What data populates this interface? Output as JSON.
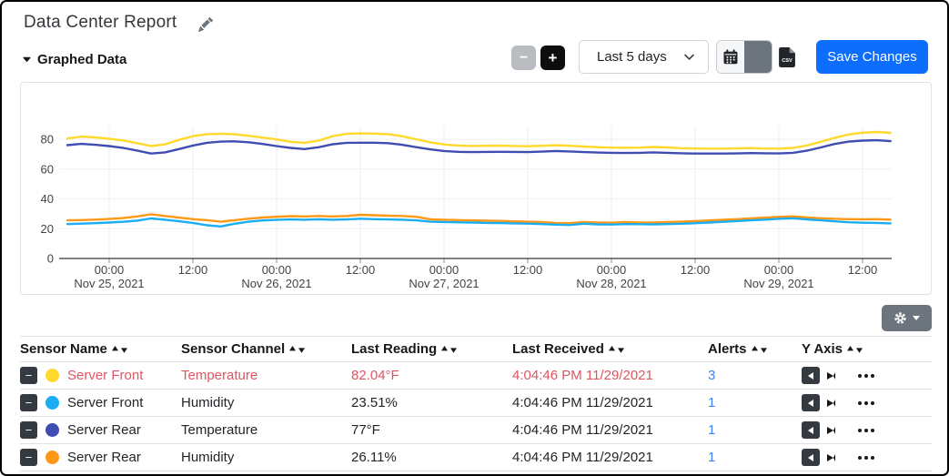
{
  "header": {
    "title": "Data Center Report"
  },
  "section": {
    "label": "Graphed Data"
  },
  "toolbar": {
    "zoom_out_label": "−",
    "zoom_in_label": "+",
    "range_value": "Last 5 days",
    "save_label": "Save Changes"
  },
  "icons": {
    "edit": "pencil-icon",
    "collapse": "caret-down-icon",
    "zoom_out": "minus-icon",
    "zoom_in": "plus-icon",
    "range": "chevron-down-icon",
    "calendar": "calendar-icon",
    "export": "csv-file-icon",
    "settings": "gear-icon",
    "sort": "sort-arrows-icon",
    "remove_row": "minus-square-icon",
    "axis_left": "left-arrow-icon",
    "axis_right": "right-arrow-icon",
    "row_menu": "ellipsis-icon"
  },
  "colors": {
    "accent": "#0d6efd",
    "danger_text": "#e0535f",
    "link": "#3c82f5",
    "front_temperature": "#ffd92b",
    "front_humidity": "#1badf2",
    "rear_temperature": "#3f4db3",
    "rear_humidity": "#fe9816"
  },
  "chart_data": {
    "type": "line",
    "title": "",
    "xlabel": "",
    "ylabel": "",
    "grid": true,
    "legend_position": "none",
    "ylim": [
      0,
      88
    ],
    "y_ticks": [
      0,
      20,
      40,
      60,
      80
    ],
    "x_unit": "hours from Nov 25, 2021 00:00",
    "x_start_hours": -6,
    "x_step_hours": 2,
    "x_ticks": [
      {
        "h": 0,
        "label": "00:00",
        "date": "Nov 25, 2021"
      },
      {
        "h": 12,
        "label": "12:00"
      },
      {
        "h": 24,
        "label": "00:00",
        "date": "Nov 26, 2021"
      },
      {
        "h": 36,
        "label": "12:00"
      },
      {
        "h": 48,
        "label": "00:00",
        "date": "Nov 27, 2021"
      },
      {
        "h": 60,
        "label": "12:00"
      },
      {
        "h": 72,
        "label": "00:00",
        "date": "Nov 28, 2021"
      },
      {
        "h": 84,
        "label": "12:00"
      },
      {
        "h": 96,
        "label": "00:00",
        "date": "Nov 29, 2021"
      },
      {
        "h": 108,
        "label": "12:00"
      }
    ],
    "series": [
      {
        "name": "Server Front Temperature",
        "color": "#ffd92b",
        "values": [
          80.5,
          81.8,
          81.2,
          80.3,
          79.2,
          77.4,
          75.4,
          76.6,
          79.6,
          82.1,
          83.4,
          83.7,
          83.3,
          82.3,
          81.1,
          79.9,
          78.3,
          77.6,
          79.0,
          82.0,
          83.6,
          83.9,
          83.8,
          83.4,
          82.0,
          80.0,
          78.0,
          76.5,
          75.8,
          75.5,
          75.6,
          75.7,
          75.5,
          75.3,
          75.6,
          76.0,
          75.6,
          75.1,
          74.7,
          74.4,
          74.3,
          74.4,
          74.8,
          74.5,
          74.0,
          73.8,
          73.7,
          73.7,
          73.9,
          74.1,
          73.8,
          73.7,
          74.2,
          75.8,
          78.3,
          81.0,
          83.2,
          84.4,
          84.9,
          84.3
        ]
      },
      {
        "name": "Server Rear Temperature",
        "color": "#3f4db3",
        "values": [
          76.0,
          76.9,
          76.3,
          75.4,
          74.2,
          72.4,
          70.4,
          71.2,
          73.4,
          75.8,
          77.6,
          78.4,
          78.6,
          78.0,
          76.8,
          75.4,
          74.2,
          73.4,
          74.6,
          76.6,
          77.6,
          77.7,
          77.7,
          77.4,
          76.3,
          74.7,
          73.2,
          72.1,
          71.6,
          71.4,
          71.5,
          71.6,
          71.5,
          71.4,
          71.7,
          72.1,
          71.8,
          71.4,
          71.1,
          70.9,
          70.8,
          70.9,
          71.2,
          70.9,
          70.6,
          70.4,
          70.4,
          70.4,
          70.5,
          70.7,
          70.6,
          70.5,
          70.9,
          72.3,
          74.5,
          76.8,
          78.4,
          79.1,
          79.3,
          78.7
        ]
      },
      {
        "name": "Server Rear Humidity",
        "color": "#fe9816",
        "values": [
          25.6,
          25.8,
          26.1,
          26.5,
          27.1,
          28.2,
          29.7,
          28.5,
          27.4,
          26.4,
          25.7,
          24.7,
          25.7,
          26.7,
          27.5,
          28.0,
          28.4,
          28.2,
          28.5,
          28.2,
          28.5,
          29.3,
          29.0,
          28.7,
          28.5,
          28.0,
          26.3,
          26.0,
          25.8,
          25.6,
          25.4,
          25.2,
          24.9,
          24.7,
          24.4,
          23.9,
          23.7,
          24.5,
          24.1,
          24.0,
          24.4,
          24.2,
          24.1,
          24.4,
          24.7,
          25.1,
          25.5,
          26.0,
          26.4,
          26.9,
          27.4,
          27.9,
          28.3,
          27.5,
          27.0,
          26.6,
          26.4,
          26.3,
          26.4,
          26.1
        ]
      },
      {
        "name": "Server Front Humidity",
        "color": "#1badf2",
        "values": [
          23.1,
          23.4,
          23.7,
          24.1,
          24.6,
          25.4,
          26.9,
          26.0,
          25.0,
          23.9,
          22.3,
          21.5,
          23.3,
          24.7,
          25.5,
          25.9,
          26.2,
          26.0,
          26.3,
          26.0,
          26.2,
          26.7,
          26.4,
          26.2,
          26.0,
          25.6,
          24.7,
          24.5,
          24.3,
          24.1,
          23.9,
          23.8,
          23.6,
          23.4,
          23.1,
          22.7,
          22.5,
          23.3,
          22.9,
          22.8,
          23.1,
          23.0,
          22.9,
          23.1,
          23.3,
          23.7,
          24.1,
          24.6,
          25.1,
          25.6,
          26.1,
          26.6,
          27.0,
          26.2,
          25.6,
          24.9,
          24.3,
          24.0,
          23.9,
          23.6
        ]
      }
    ]
  },
  "table": {
    "columns": [
      {
        "label": "Sensor Name"
      },
      {
        "label": "Sensor Channel"
      },
      {
        "label": "Last Reading"
      },
      {
        "label": "Last Received"
      },
      {
        "label": "Alerts"
      },
      {
        "label": "Y Axis"
      }
    ],
    "rows": [
      {
        "name": "Server Front",
        "channel": "Temperature",
        "reading": "82.04°F",
        "received": "4:04:46 PM 11/29/2021",
        "alerts": "3",
        "color": "#ffd92b",
        "state": "alarm"
      },
      {
        "name": "Server Front",
        "channel": "Humidity",
        "reading": "23.51%",
        "received": "4:04:46 PM 11/29/2021",
        "alerts": "1",
        "color": "#1badf2",
        "state": "normal"
      },
      {
        "name": "Server Rear",
        "channel": "Temperature",
        "reading": "77°F",
        "received": "4:04:46 PM 11/29/2021",
        "alerts": "1",
        "color": "#3f4db3",
        "state": "normal"
      },
      {
        "name": "Server Rear",
        "channel": "Humidity",
        "reading": "26.11%",
        "received": "4:04:46 PM 11/29/2021",
        "alerts": "1",
        "color": "#fe9816",
        "state": "normal"
      }
    ]
  }
}
